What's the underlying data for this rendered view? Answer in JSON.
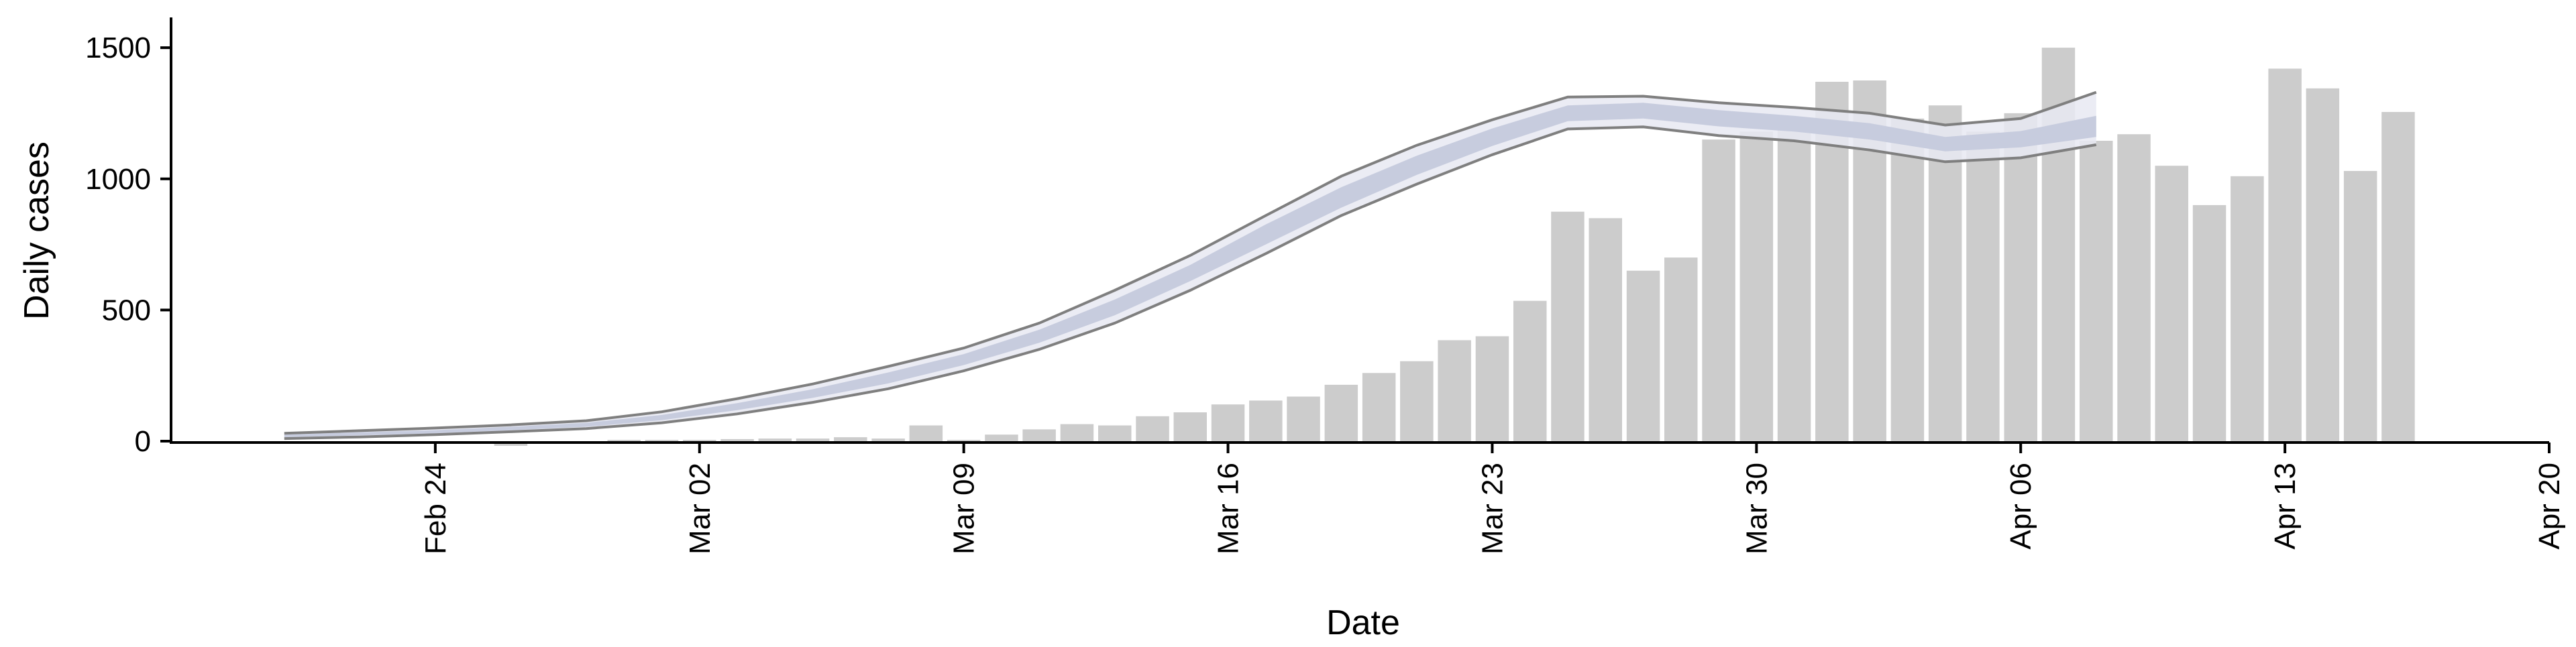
{
  "chart_data": {
    "type": "bar",
    "title": "",
    "xlabel": "Date",
    "ylabel": "Daily cases",
    "ylim": [
      0,
      1600
    ],
    "xlim": [
      "2020-02-17",
      "2020-04-20"
    ],
    "grid": false,
    "x_ticks": [
      "Feb 24",
      "Mar 02",
      "Mar 09",
      "Mar 16",
      "Mar 23",
      "Mar 30",
      "Apr 06",
      "Apr 13",
      "Apr 20"
    ],
    "x_tick_dates": [
      "2020-02-24",
      "2020-03-02",
      "2020-03-09",
      "2020-03-16",
      "2020-03-23",
      "2020-03-30",
      "2020-04-06",
      "2020-04-13",
      "2020-04-20"
    ],
    "y_ticks": [
      0,
      500,
      1000,
      1500
    ],
    "colors": {
      "bars": "#cccccc",
      "band_outer": "#e7e9f2",
      "band_inner": "#c3c9db",
      "bound_lines": "#7f7f7f",
      "axis": "#000000"
    },
    "reported_cases": {
      "dates": [
        "2020-02-26",
        "2020-02-29",
        "2020-03-01",
        "2020-03-02",
        "2020-03-03",
        "2020-03-04",
        "2020-03-05",
        "2020-03-06",
        "2020-03-07",
        "2020-03-08",
        "2020-03-09",
        "2020-03-10",
        "2020-03-11",
        "2020-03-12",
        "2020-03-13",
        "2020-03-14",
        "2020-03-15",
        "2020-03-16",
        "2020-03-17",
        "2020-03-18",
        "2020-03-19",
        "2020-03-20",
        "2020-03-21",
        "2020-03-22",
        "2020-03-23",
        "2020-03-24",
        "2020-03-25",
        "2020-03-26",
        "2020-03-27",
        "2020-03-28",
        "2020-03-29",
        "2020-03-30",
        "2020-03-31",
        "2020-04-01",
        "2020-04-02",
        "2020-04-03",
        "2020-04-04",
        "2020-04-05",
        "2020-04-06",
        "2020-04-07",
        "2020-04-08",
        "2020-04-09",
        "2020-04-10",
        "2020-04-11",
        "2020-04-12",
        "2020-04-13",
        "2020-04-14",
        "2020-04-15",
        "2020-04-16",
        "2020-04-17"
      ],
      "values": [
        -18,
        5,
        5,
        5,
        8,
        10,
        10,
        15,
        10,
        60,
        5,
        25,
        45,
        65,
        60,
        95,
        110,
        140,
        155,
        170,
        215,
        260,
        305,
        385,
        400,
        535,
        875,
        850,
        650,
        700,
        1150,
        1180,
        1230,
        1370,
        1375,
        1230,
        1280,
        1180,
        1250,
        1500,
        1145,
        1170,
        1050,
        900,
        1010,
        1420,
        1345,
        1030,
        1255,
        0
      ]
    },
    "estimated_trend": {
      "dates": [
        "2020-02-20",
        "2020-02-22",
        "2020-02-24",
        "2020-02-26",
        "2020-02-28",
        "2020-03-01",
        "2020-03-03",
        "2020-03-05",
        "2020-03-07",
        "2020-03-09",
        "2020-03-11",
        "2020-03-13",
        "2020-03-15",
        "2020-03-17",
        "2020-03-19",
        "2020-03-21",
        "2020-03-23",
        "2020-03-25",
        "2020-03-27",
        "2020-03-29",
        "2020-03-31",
        "2020-04-02",
        "2020-04-04",
        "2020-04-06",
        "2020-04-08"
      ],
      "median": [
        20,
        28,
        35,
        48,
        62,
        90,
        130,
        180,
        240,
        310,
        400,
        510,
        640,
        790,
        930,
        1050,
        1160,
        1250,
        1260,
        1230,
        1210,
        1180,
        1130,
        1150,
        1200
      ],
      "inner_lower": [
        15,
        22,
        30,
        42,
        55,
        80,
        118,
        165,
        220,
        290,
        375,
        480,
        610,
        750,
        890,
        1015,
        1125,
        1220,
        1230,
        1200,
        1180,
        1150,
        1105,
        1120,
        1160
      ],
      "inner_upper": [
        25,
        34,
        42,
        55,
        70,
        100,
        145,
        198,
        262,
        332,
        425,
        540,
        672,
        826,
        968,
        1088,
        1192,
        1280,
        1290,
        1262,
        1240,
        1212,
        1160,
        1182,
        1240
      ],
      "outer_lower": [
        10,
        16,
        25,
        36,
        48,
        70,
        104,
        148,
        200,
        268,
        350,
        450,
        575,
        715,
        860,
        980,
        1092,
        1190,
        1198,
        1165,
        1145,
        1110,
        1065,
        1080,
        1130
      ],
      "outer_upper": [
        30,
        40,
        50,
        62,
        78,
        112,
        162,
        218,
        285,
        355,
        450,
        575,
        708,
        860,
        1010,
        1128,
        1225,
        1312,
        1315,
        1290,
        1272,
        1250,
        1205,
        1230,
        1330
      ]
    }
  }
}
